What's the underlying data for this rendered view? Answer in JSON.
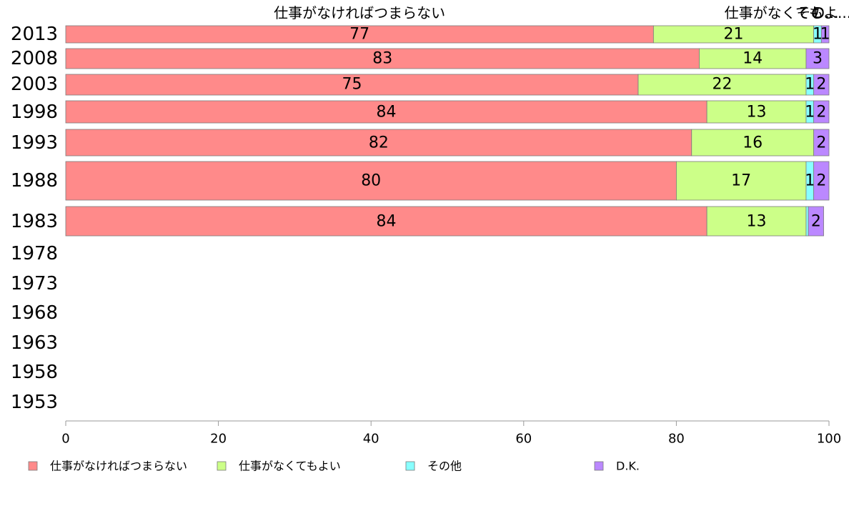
{
  "chart_data": {
    "type": "bar",
    "orientation": "horizontal",
    "stacked": true,
    "title": "",
    "xlabel": "",
    "ylabel": "",
    "xlim": [
      0,
      100
    ],
    "x_ticks": [
      "0",
      "20",
      "40",
      "60",
      "80",
      "100"
    ],
    "categories": [
      "2013",
      "2008",
      "2003",
      "1998",
      "1993",
      "1988",
      "1983",
      "1978",
      "1973",
      "1968",
      "1963",
      "1958",
      "1953"
    ],
    "series": [
      {
        "name": "仕事がなければつまらない",
        "color": "#ff8a8a",
        "values": [
          77,
          83,
          75,
          84,
          82,
          80,
          84,
          null,
          null,
          null,
          null,
          null,
          null
        ]
      },
      {
        "name": "仕事がなくてもよい",
        "color": "#ccff88",
        "values": [
          21,
          14,
          22,
          13,
          16,
          17,
          13,
          null,
          null,
          null,
          null,
          null,
          null
        ]
      },
      {
        "name": "その他",
        "color": "#88ffff",
        "values": [
          1,
          0,
          1,
          1,
          0,
          1,
          0.3,
          null,
          null,
          null,
          null,
          null,
          null
        ]
      },
      {
        "name": "D.K.",
        "color": "#bb88ff",
        "values": [
          1,
          3,
          2,
          2,
          2,
          2,
          2,
          null,
          null,
          null,
          null,
          null,
          null
        ]
      }
    ],
    "data_labels": [
      [
        "77",
        "21",
        "1",
        "1"
      ],
      [
        "83",
        "14",
        "",
        "3"
      ],
      [
        "75",
        "22",
        "1",
        "2"
      ],
      [
        "84",
        "13",
        "1",
        "2"
      ],
      [
        "82",
        "16",
        "",
        "2"
      ],
      [
        "80",
        "17",
        "1",
        "2"
      ],
      [
        "84",
        "13",
        "",
        "2"
      ]
    ],
    "column_headers": [
      "仕事がなければつまらない",
      "仕事がなくてもよ...",
      "その...",
      "D..."
    ],
    "legend_position": "bottom",
    "grid": false
  }
}
